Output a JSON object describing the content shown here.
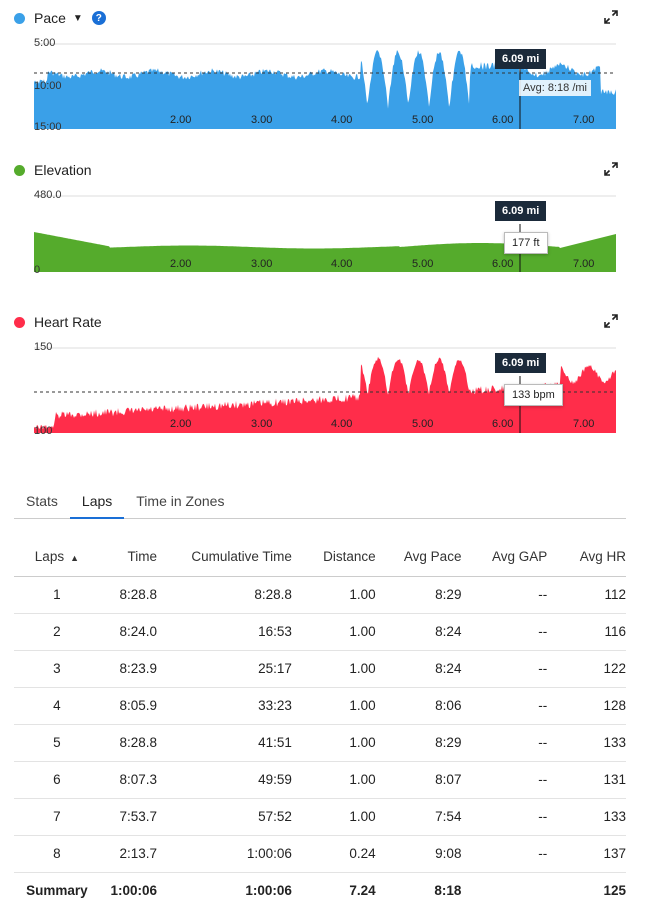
{
  "colors": {
    "pace": "#3aa0e8",
    "elevation": "#55ab2c",
    "heart_rate": "#ff2d4a",
    "accent": "#1a6fd6",
    "tooltip": "#1b2a3a"
  },
  "icons": {
    "caret": "caret-down-icon",
    "help": "help-icon",
    "expand": "expand-icon"
  },
  "pace": {
    "title": "Pace",
    "help": "?",
    "y_top": "5:00",
    "y_mid": "10:00",
    "y_bottom": "15:00",
    "tooltip_distance": "6.09 mi",
    "avg_label": "Avg: 8:18 /mi"
  },
  "elevation": {
    "title": "Elevation",
    "y_top": "480.0",
    "y_bottom": "0",
    "tooltip_distance": "6.09 mi",
    "tooltip_value": "177 ft"
  },
  "heart_rate": {
    "title": "Heart Rate",
    "y_top": "150",
    "y_bottom": "100",
    "tooltip_distance": "6.09 mi",
    "tooltip_value": "133 bpm"
  },
  "x_ticks": [
    "2.00",
    "3.00",
    "4.00",
    "5.00",
    "6.00",
    "7.00"
  ],
  "tabs": [
    "Stats",
    "Laps",
    "Time in Zones"
  ],
  "active_tab": "Laps",
  "table": {
    "headers": [
      "Laps",
      "Time",
      "Cumulative Time",
      "Distance",
      "Avg Pace",
      "Avg GAP",
      "Avg HR"
    ],
    "sort_indicator": "▲",
    "rows": [
      [
        "1",
        "8:28.8",
        "8:28.8",
        "1.00",
        "8:29",
        "--",
        "112"
      ],
      [
        "2",
        "8:24.0",
        "16:53",
        "1.00",
        "8:24",
        "--",
        "116"
      ],
      [
        "3",
        "8:23.9",
        "25:17",
        "1.00",
        "8:24",
        "--",
        "122"
      ],
      [
        "4",
        "8:05.9",
        "33:23",
        "1.00",
        "8:06",
        "--",
        "128"
      ],
      [
        "5",
        "8:28.8",
        "41:51",
        "1.00",
        "8:29",
        "--",
        "133"
      ],
      [
        "6",
        "8:07.3",
        "49:59",
        "1.00",
        "8:07",
        "--",
        "131"
      ],
      [
        "7",
        "7:53.7",
        "57:52",
        "1.00",
        "7:54",
        "--",
        "133"
      ],
      [
        "8",
        "2:13.7",
        "1:00:06",
        "0.24",
        "9:08",
        "--",
        "137"
      ]
    ],
    "summary": [
      "Summary",
      "1:00:06",
      "1:00:06",
      "7.24",
      "8:18",
      "",
      "125"
    ]
  }
}
